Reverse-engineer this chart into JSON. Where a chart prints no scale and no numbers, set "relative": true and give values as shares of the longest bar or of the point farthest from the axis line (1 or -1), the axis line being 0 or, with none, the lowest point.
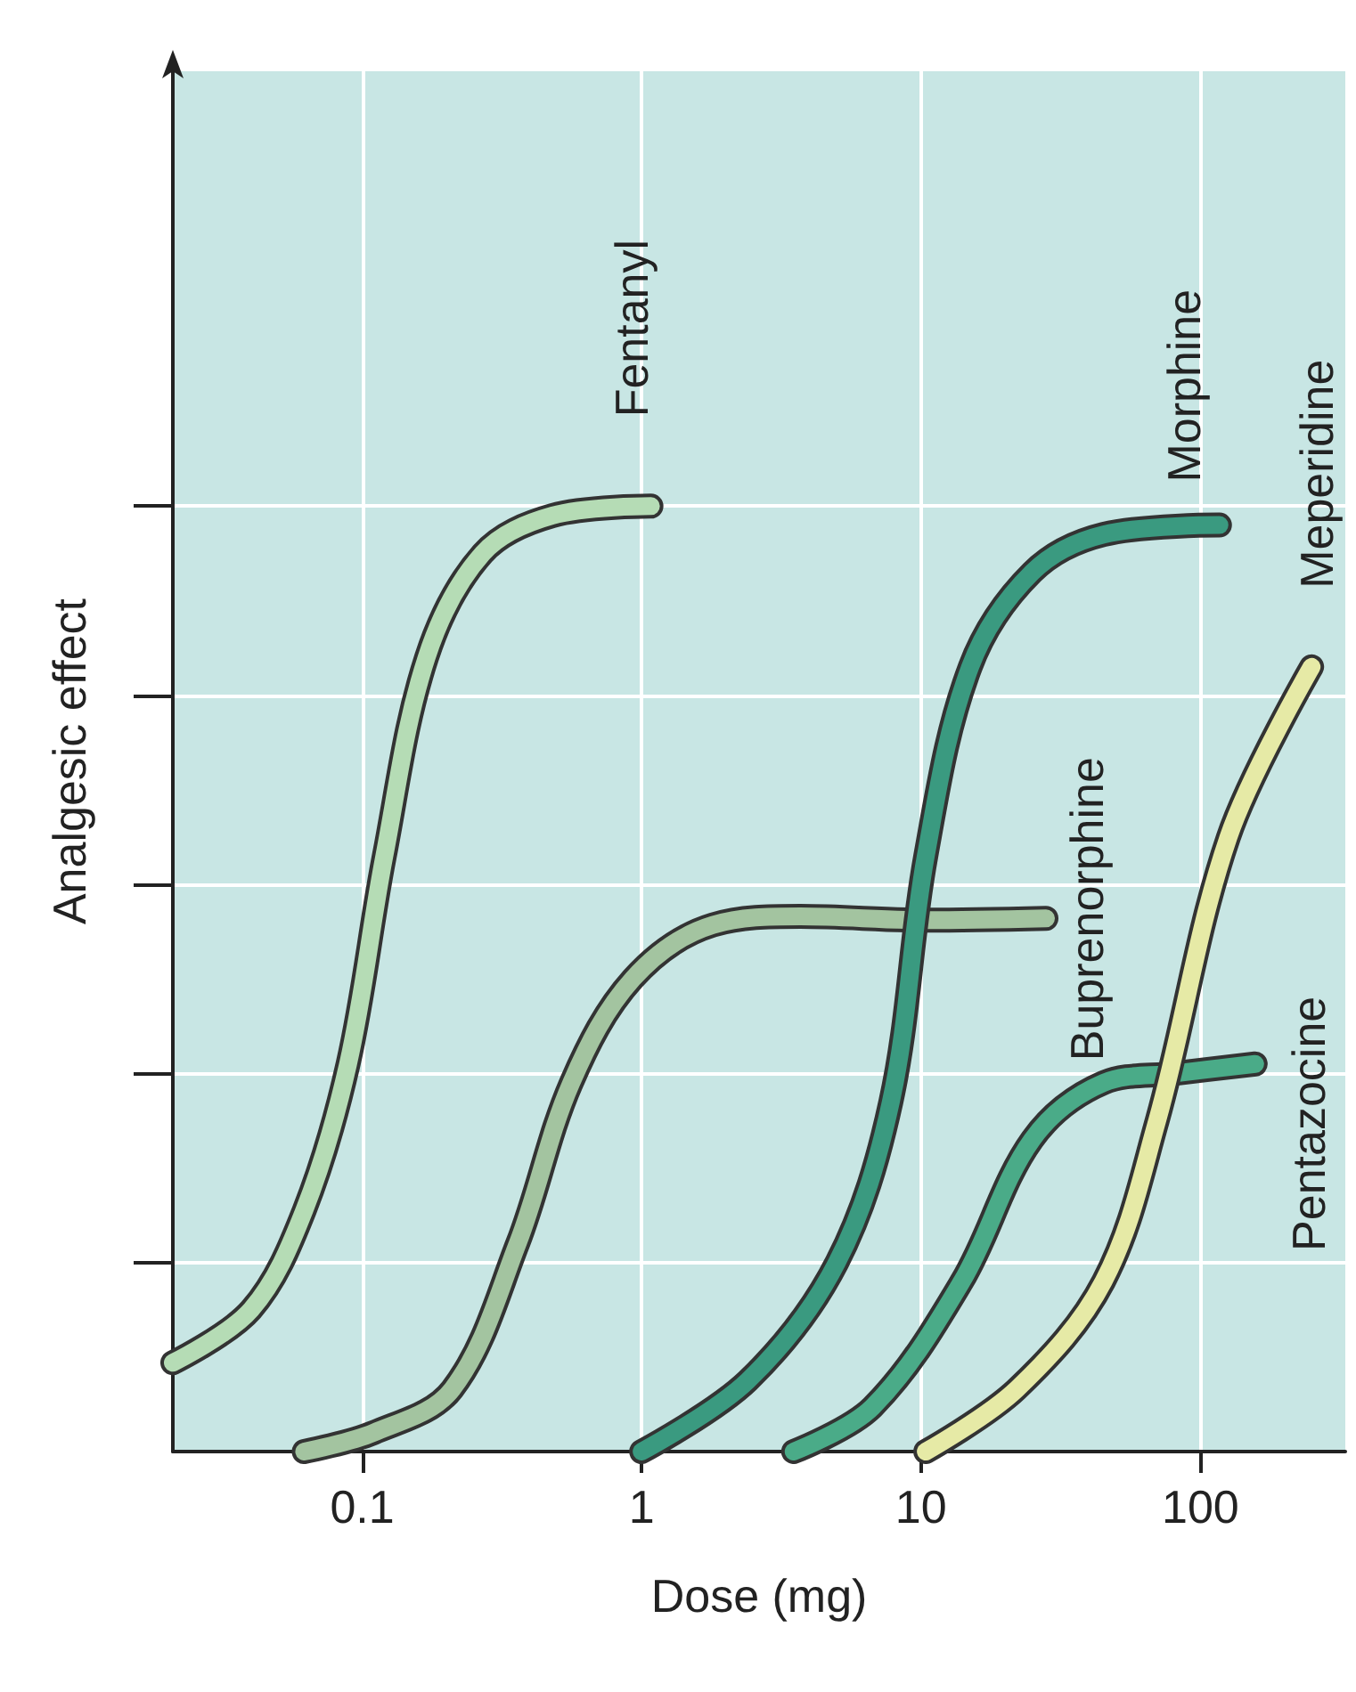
{
  "chart_data": {
    "type": "line",
    "xlabel": "Dose (mg)",
    "ylabel": "Analgesic effect",
    "relative": true,
    "log": "x",
    "grid": true,
    "legend": false,
    "marker": "none",
    "line_style": "solid",
    "xlim": [
      0.021,
      330
    ],
    "xticks": [
      0.1,
      1,
      10,
      100
    ],
    "series": [
      {
        "name": "Fentanyl",
        "color": "#b5dcb5",
        "x": [
          0.021,
          0.04,
          0.062,
          0.089,
          0.12,
          0.17,
          0.27,
          0.48,
          1.08
        ],
        "values": [
          0.094,
          0.15,
          0.255,
          0.41,
          0.63,
          0.84,
          0.95,
          0.99,
          1.0
        ]
      },
      {
        "name": "Buprenorphine",
        "color": "#a3c4a0",
        "x": [
          0.062,
          0.11,
          0.21,
          0.36,
          0.56,
          0.93,
          1.8,
          3.7,
          10.4,
          28
        ],
        "values": [
          0,
          0.02,
          0.066,
          0.22,
          0.39,
          0.5,
          0.557,
          0.566,
          0.562,
          0.564
        ]
      },
      {
        "name": "Morphine",
        "color": "#3a9a80",
        "x": [
          1,
          2.4,
          5,
          7.8,
          10.4,
          15,
          25,
          45,
          117
        ],
        "values": [
          0,
          0.075,
          0.2,
          0.37,
          0.63,
          0.83,
          0.93,
          0.97,
          0.98
        ]
      },
      {
        "name": "Pentazocine",
        "color": "#4aab88",
        "x": [
          3.5,
          6.7,
          14,
          25,
          45,
          81,
          157
        ],
        "values": [
          0,
          0.047,
          0.18,
          0.33,
          0.39,
          0.4,
          0.41
        ]
      },
      {
        "name": "Meperidine",
        "color": "#e6eaa6",
        "x": [
          10.4,
          22,
          45,
          70,
          126,
          250
        ],
        "values": [
          0,
          0.066,
          0.18,
          0.35,
          0.65,
          0.83
        ]
      }
    ]
  }
}
